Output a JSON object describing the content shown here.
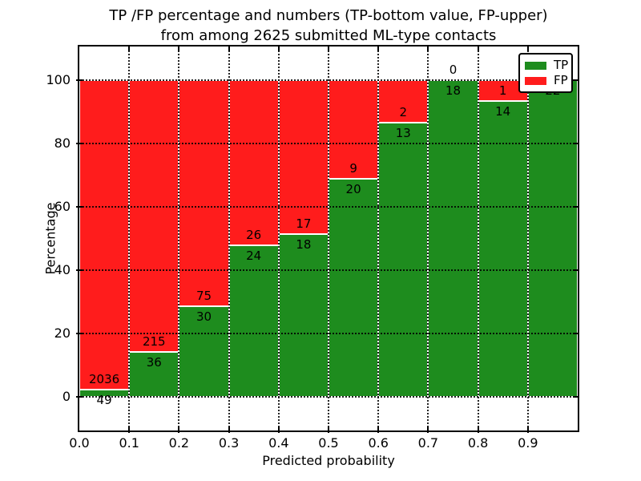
{
  "figure": {
    "title_line1": "TP /FP percentage and numbers (TP-bottom value, FP-upper)",
    "title_line2": "from among 2625 submitted ML-type contacts",
    "xlabel": "Predicted probability",
    "ylabel": "Percentage",
    "total_contacts": "2625",
    "colors": {
      "tp": "#1e8c1e",
      "fp": "#ff1c1c",
      "grid": "#000000",
      "background": "#ffffff"
    },
    "legend": {
      "items": [
        {
          "label": "TP",
          "color": "#1e8c1e"
        },
        {
          "label": "FP",
          "color": "#ff1c1c"
        }
      ]
    },
    "x_tick_labels": [
      "0.0",
      "0.1",
      "0.2",
      "0.3",
      "0.4",
      "0.5",
      "0.6",
      "0.7",
      "0.8",
      "0.9"
    ],
    "y_tick_labels": [
      "0",
      "20",
      "40",
      "60",
      "80",
      "100"
    ]
  },
  "chart_data": {
    "type": "bar",
    "stacked": true,
    "normalized_to_percent": true,
    "title": "TP /FP percentage and numbers (TP-bottom value, FP-upper) from among 2625 submitted ML-type contacts",
    "xlabel": "Predicted probability",
    "ylabel": "Percentage",
    "categories": [
      "0.0-0.1",
      "0.1-0.2",
      "0.2-0.3",
      "0.3-0.4",
      "0.4-0.5",
      "0.5-0.6",
      "0.6-0.7",
      "0.7-0.8",
      "0.8-0.9",
      "0.9-1.0"
    ],
    "series": [
      {
        "name": "TP",
        "color": "#1e8c1e",
        "values": [
          49,
          36,
          30,
          24,
          18,
          20,
          13,
          18,
          14,
          22
        ]
      },
      {
        "name": "FP",
        "color": "#ff1c1c",
        "values": [
          2036,
          215,
          75,
          26,
          17,
          9,
          2,
          0,
          1,
          0
        ]
      }
    ],
    "tp_labels": [
      "49",
      "36",
      "30",
      "24",
      "18",
      "20",
      "13",
      "18",
      "14",
      "22"
    ],
    "fp_labels": [
      "2036",
      "215",
      "75",
      "26",
      "17",
      "9",
      "2",
      "0",
      "1",
      ""
    ],
    "x_ticks": [
      0.0,
      0.1,
      0.2,
      0.3,
      0.4,
      0.5,
      0.6,
      0.7,
      0.8,
      0.9
    ],
    "y_ticks": [
      0,
      20,
      40,
      60,
      80,
      100
    ],
    "ylim": [
      -10.6,
      110.6
    ],
    "xlim": [
      0.0,
      1.0
    ],
    "grid": true,
    "legend_position": "upper right"
  }
}
